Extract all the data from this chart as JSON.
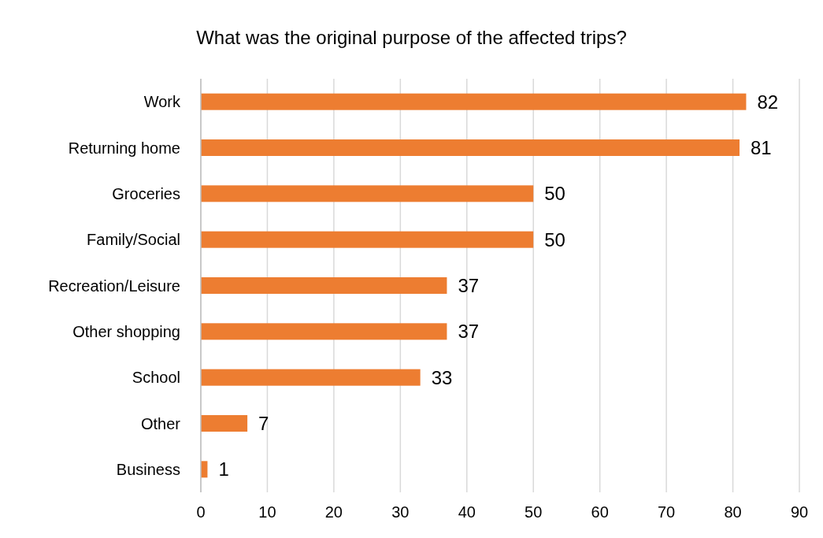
{
  "chart_data": {
    "type": "bar",
    "orientation": "horizontal",
    "title": "What was the original purpose of the affected trips?",
    "categories": [
      "Work",
      "Returning home",
      "Groceries",
      "Family/Social",
      "Recreation/Leisure",
      "Other shopping",
      "School",
      "Other",
      "Business"
    ],
    "values": [
      82,
      81,
      50,
      50,
      37,
      37,
      33,
      7,
      1
    ],
    "color": "#ed7d31",
    "xlim": [
      0,
      90
    ],
    "xticks": [
      0,
      10,
      20,
      30,
      40,
      50,
      60,
      70,
      80,
      90
    ],
    "grid": "x",
    "data_labels": true
  }
}
